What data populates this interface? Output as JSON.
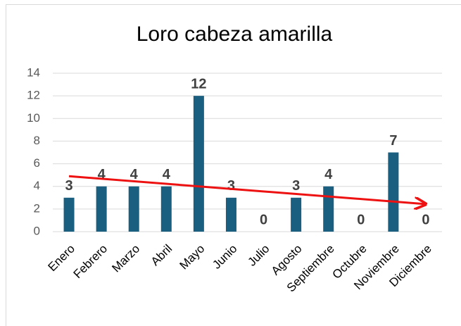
{
  "chart_data": {
    "type": "bar",
    "title": "Loro cabeza amarilla",
    "categories": [
      "Enero",
      "Febrero",
      "Marzo",
      "Abril",
      "Mayo",
      "Junio",
      "Julio",
      "Agosto",
      "Septiembre",
      "Octubre",
      "Noviembre",
      "Diciembre"
    ],
    "values": [
      3,
      4,
      4,
      4,
      12,
      3,
      0,
      3,
      4,
      0,
      7,
      0
    ],
    "color": "#1a5f80",
    "ylim": [
      0,
      14
    ],
    "yticks": [
      0,
      2,
      4,
      6,
      8,
      10,
      12,
      14
    ],
    "grid": true,
    "trendline": "linear",
    "trendline_color": "#ee1111"
  }
}
